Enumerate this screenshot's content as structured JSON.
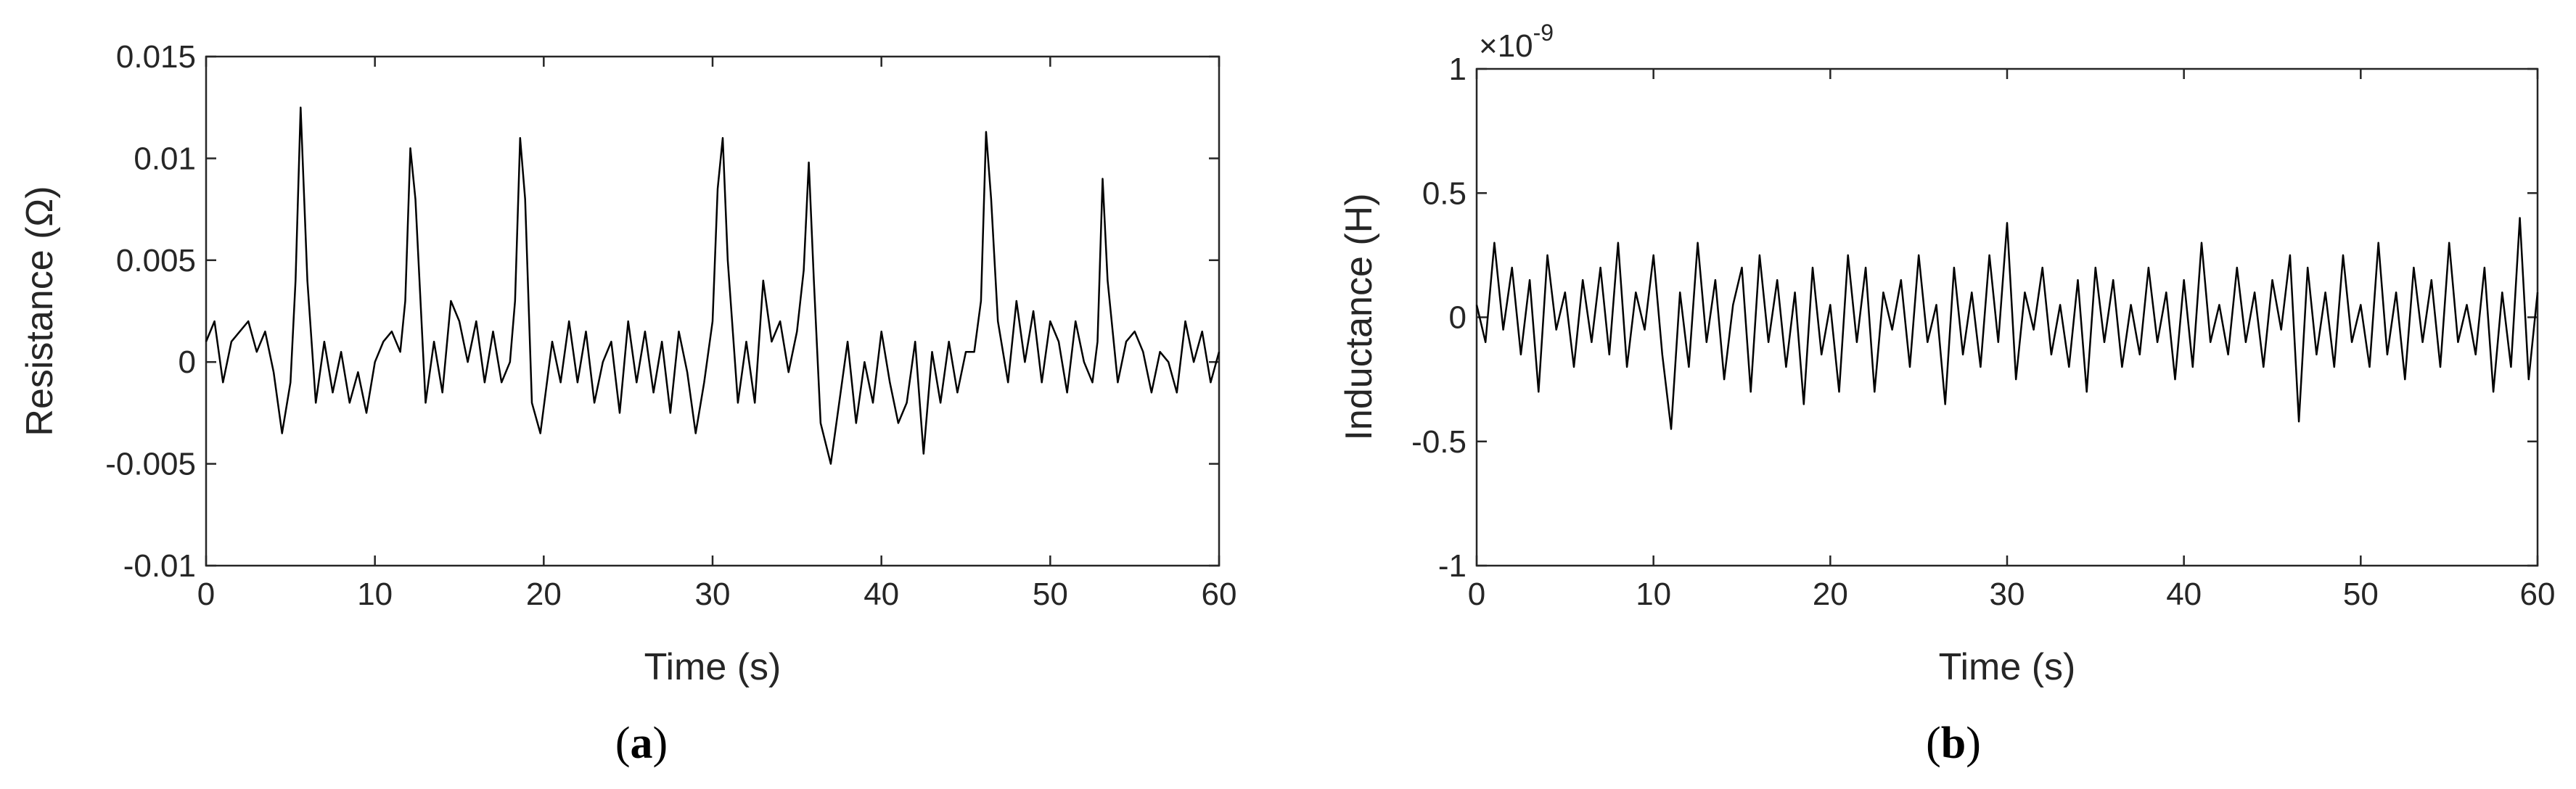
{
  "chart_data": [
    {
      "type": "line",
      "panel_label": "a",
      "xlabel": "Time (s)",
      "ylabel": "Resistance (Ω)",
      "xlim": [
        0,
        60
      ],
      "ylim": [
        -0.01,
        0.015
      ],
      "xticks": [
        0,
        10,
        20,
        30,
        40,
        50,
        60
      ],
      "xtick_labels": [
        "0",
        "10",
        "20",
        "30",
        "40",
        "50",
        "60"
      ],
      "yticks": [
        -0.01,
        -0.005,
        0,
        0.005,
        0.01,
        0.015
      ],
      "ytick_labels": [
        "-0.01",
        "-0.005",
        "0",
        "0.005",
        "0.01",
        "0.015"
      ],
      "grid": false,
      "line_color": "#000000",
      "series": [
        {
          "x": [
            0,
            0.5,
            1,
            1.5,
            2,
            2.5,
            3,
            3.5,
            4,
            4.5,
            5,
            5.3,
            5.6,
            6,
            6.5,
            7,
            7.5,
            8,
            8.5,
            9,
            9.5,
            10,
            10.5,
            11,
            11.5,
            11.8,
            12.1,
            12.4,
            13,
            13.5,
            14,
            14.5,
            15,
            15.5,
            16,
            16.5,
            17,
            17.5,
            18,
            18.3,
            18.6,
            18.9,
            19.3,
            19.8,
            20.5,
            21,
            21.5,
            22,
            22.5,
            23,
            23.5,
            24,
            24.5,
            25,
            25.5,
            26,
            26.5,
            27,
            27.5,
            28,
            28.5,
            29,
            29.5,
            30,
            30.3,
            30.6,
            30.9,
            31.5,
            32,
            32.5,
            33,
            33.5,
            34,
            34.5,
            35,
            35.4,
            35.7,
            36,
            36.4,
            37,
            37.5,
            38,
            38.5,
            39,
            39.5,
            40,
            40.5,
            41,
            41.5,
            42,
            42.5,
            43,
            43.5,
            44,
            44.5,
            45,
            45.5,
            45.9,
            46.2,
            46.5,
            46.9,
            47.5,
            48,
            48.5,
            49,
            49.5,
            50,
            50.5,
            51,
            51.5,
            52,
            52.5,
            52.8,
            53.1,
            53.4,
            54,
            54.5,
            55,
            55.5,
            56,
            56.5,
            57,
            57.5,
            58,
            58.5,
            59,
            59.5,
            60
          ],
          "y": [
            0.001,
            0.002,
            -0.001,
            0.001,
            0.0015,
            0.002,
            0.0005,
            0.0015,
            -0.0005,
            -0.0035,
            -0.001,
            0.004,
            0.0125,
            0.004,
            -0.002,
            0.001,
            -0.0015,
            0.0005,
            -0.002,
            -0.0005,
            -0.0025,
            0,
            0.001,
            0.0015,
            0.0005,
            0.003,
            0.0105,
            0.008,
            -0.002,
            0.001,
            -0.0015,
            0.003,
            0.002,
            0,
            0.002,
            -0.001,
            0.0015,
            -0.001,
            0,
            0.003,
            0.011,
            0.008,
            -0.002,
            -0.0035,
            0.001,
            -0.001,
            0.002,
            -0.001,
            0.0015,
            -0.002,
            0,
            0.001,
            -0.0025,
            0.002,
            -0.001,
            0.0015,
            -0.0015,
            0.001,
            -0.0025,
            0.0015,
            -0.0005,
            -0.0035,
            -0.001,
            0.002,
            0.0085,
            0.011,
            0.005,
            -0.002,
            0.001,
            -0.002,
            0.004,
            0.001,
            0.002,
            -0.0005,
            0.0015,
            0.0045,
            0.0098,
            0.004,
            -0.003,
            -0.005,
            -0.002,
            0.001,
            -0.003,
            0,
            -0.002,
            0.0015,
            -0.001,
            -0.003,
            -0.002,
            0.001,
            -0.0045,
            0.0005,
            -0.002,
            0.001,
            -0.0015,
            0.0005,
            0.0005,
            0.003,
            0.0113,
            0.008,
            0.002,
            -0.001,
            0.003,
            0,
            0.0025,
            -0.001,
            0.002,
            0.001,
            -0.0015,
            0.002,
            0,
            -0.001,
            0.001,
            0.009,
            0.004,
            -0.001,
            0.001,
            0.0015,
            0.0005,
            -0.0015,
            0.0005,
            0,
            -0.0015,
            0.002,
            0,
            0.0015,
            -0.001,
            0.0005
          ]
        }
      ]
    },
    {
      "type": "line",
      "panel_label": "b",
      "xlabel": "Time (s)",
      "ylabel": "Inductance (H)",
      "axis_multiplier": "×10",
      "axis_multiplier_exponent": "-9",
      "xlim": [
        0,
        60
      ],
      "ylim": [
        -1,
        1
      ],
      "xticks": [
        0,
        10,
        20,
        30,
        40,
        50,
        60
      ],
      "xtick_labels": [
        "0",
        "10",
        "20",
        "30",
        "40",
        "50",
        "60"
      ],
      "yticks": [
        -1,
        -0.5,
        0,
        0.5,
        1
      ],
      "ytick_labels": [
        "-1",
        "-0.5",
        "0",
        "0.5",
        "1"
      ],
      "grid": false,
      "line_color": "#000000",
      "series": [
        {
          "x": [
            0,
            0.5,
            1,
            1.5,
            2,
            2.5,
            3,
            3.5,
            4,
            4.5,
            5,
            5.5,
            6,
            6.5,
            7,
            7.5,
            8,
            8.5,
            9,
            9.5,
            10,
            10.5,
            11,
            11.5,
            12,
            12.5,
            13,
            13.5,
            14,
            14.5,
            15,
            15.5,
            16,
            16.5,
            17,
            17.5,
            18,
            18.5,
            19,
            19.5,
            20,
            20.5,
            21,
            21.5,
            22,
            22.5,
            23,
            23.5,
            24,
            24.5,
            25,
            25.5,
            26,
            26.5,
            27,
            27.5,
            28,
            28.5,
            29,
            29.5,
            30,
            30.5,
            31,
            31.5,
            32,
            32.5,
            33,
            33.5,
            34,
            34.5,
            35,
            35.5,
            36,
            36.5,
            37,
            37.5,
            38,
            38.5,
            39,
            39.5,
            40,
            40.5,
            41,
            41.5,
            42,
            42.5,
            43,
            43.5,
            44,
            44.5,
            45,
            45.5,
            46,
            46.5,
            47,
            47.5,
            48,
            48.5,
            49,
            49.5,
            50,
            50.5,
            51,
            51.5,
            52,
            52.5,
            53,
            53.5,
            54,
            54.5,
            55,
            55.5,
            56,
            56.5,
            57,
            57.5,
            58,
            58.5,
            59,
            59.5,
            60
          ],
          "y": [
            0.05,
            -0.1,
            0.3,
            -0.05,
            0.2,
            -0.15,
            0.15,
            -0.3,
            0.25,
            -0.05,
            0.1,
            -0.2,
            0.15,
            -0.1,
            0.2,
            -0.15,
            0.3,
            -0.2,
            0.1,
            -0.05,
            0.25,
            -0.15,
            -0.45,
            0.1,
            -0.2,
            0.3,
            -0.1,
            0.15,
            -0.25,
            0.05,
            0.2,
            -0.3,
            0.25,
            -0.1,
            0.15,
            -0.2,
            0.1,
            -0.35,
            0.2,
            -0.15,
            0.05,
            -0.3,
            0.25,
            -0.1,
            0.2,
            -0.3,
            0.1,
            -0.05,
            0.15,
            -0.2,
            0.25,
            -0.1,
            0.05,
            -0.35,
            0.2,
            -0.15,
            0.1,
            -0.2,
            0.25,
            -0.1,
            0.38,
            -0.25,
            0.1,
            -0.05,
            0.2,
            -0.15,
            0.05,
            -0.2,
            0.15,
            -0.3,
            0.2,
            -0.1,
            0.15,
            -0.2,
            0.05,
            -0.15,
            0.2,
            -0.1,
            0.1,
            -0.25,
            0.15,
            -0.2,
            0.3,
            -0.1,
            0.05,
            -0.15,
            0.2,
            -0.1,
            0.1,
            -0.2,
            0.15,
            -0.05,
            0.25,
            -0.42,
            0.2,
            -0.15,
            0.1,
            -0.2,
            0.25,
            -0.1,
            0.05,
            -0.2,
            0.3,
            -0.15,
            0.1,
            -0.25,
            0.2,
            -0.1,
            0.15,
            -0.2,
            0.3,
            -0.1,
            0.05,
            -0.15,
            0.2,
            -0.3,
            0.1,
            -0.2,
            0.4,
            -0.25,
            0.1
          ]
        }
      ]
    }
  ]
}
